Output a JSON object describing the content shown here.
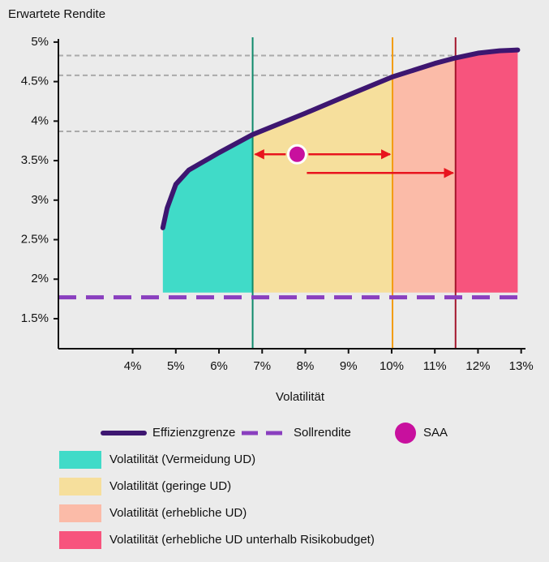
{
  "chart_data": {
    "type": "line",
    "title": "Erwartete Rendite",
    "x_label": "Volatilität",
    "xlim": [
      2.28,
      13.1
    ],
    "ylim": [
      1.12,
      5.04
    ],
    "xticks": [
      {
        "value": 4,
        "label": "4%"
      },
      {
        "value": 5,
        "label": "5%"
      },
      {
        "value": 6,
        "label": "6%"
      },
      {
        "value": 7,
        "label": "7%"
      },
      {
        "value": 8,
        "label": "8%"
      },
      {
        "value": 9,
        "label": "9%"
      },
      {
        "value": 10,
        "label": "10%"
      },
      {
        "value": 11,
        "label": "11%"
      },
      {
        "value": 12,
        "label": "12%"
      },
      {
        "value": 13,
        "label": "13%"
      }
    ],
    "yticks": [
      {
        "value": 1.5,
        "label": "1.5%"
      },
      {
        "value": 2,
        "label": "2%"
      },
      {
        "value": 2.5,
        "label": "2.5%"
      },
      {
        "value": 3,
        "label": "3%"
      },
      {
        "value": 3.5,
        "label": "3.5%"
      },
      {
        "value": 4,
        "label": "4%"
      },
      {
        "value": 4.5,
        "label": "4.5%"
      },
      {
        "value": 5,
        "label": "5%"
      }
    ],
    "frontier": {
      "name": "Effizienzgrenze",
      "color": "#3d1670",
      "x": [
        4.7,
        4.8,
        5.0,
        5.3,
        6.0,
        6.78,
        8.0,
        9.0,
        10.02,
        11.0,
        11.48,
        12.0,
        12.5,
        12.92
      ],
      "values": [
        2.65,
        2.9,
        3.2,
        3.38,
        3.6,
        3.83,
        4.1,
        4.33,
        4.56,
        4.73,
        4.8,
        4.86,
        4.89,
        4.9
      ]
    },
    "target": {
      "name": "Sollrendite",
      "color": "#8a3fbf",
      "value": 1.77
    },
    "saa": {
      "name": "SAA",
      "color": "#c8109e",
      "x": 7.81,
      "value": 3.58
    },
    "fill_floor": 1.83,
    "reference_levels": [
      3.87,
      4.58,
      4.83
    ],
    "zones": [
      {
        "name": "Volatilität (Vermeidung UD)",
        "color": "#40dbc8",
        "x_end": 6.78,
        "line_color": "#0e8a6a"
      },
      {
        "name": "Volatilität (geringe UD)",
        "color": "#f6df9c",
        "x_end": 10.02,
        "line_color": "#f39c12"
      },
      {
        "name": "Volatilität (erhebliche UD)",
        "color": "#fbbba8",
        "x_end": 11.48,
        "line_color": "#a3152b"
      },
      {
        "name": "Volatilität (erhebliche UD unterhalb Risikobudget)",
        "color": "#f7547d",
        "x_end": 12.92
      }
    ]
  }
}
